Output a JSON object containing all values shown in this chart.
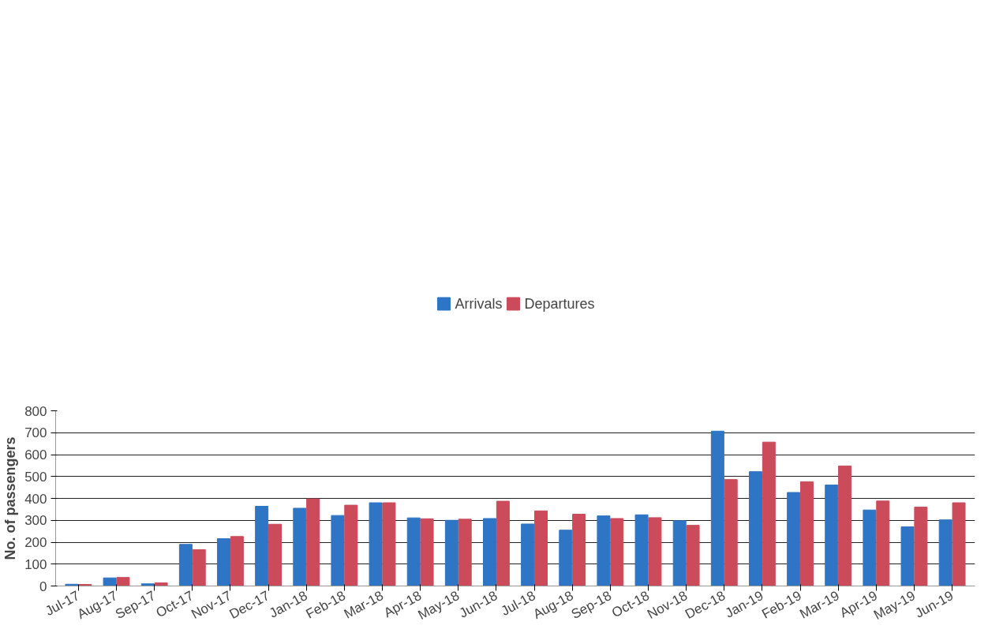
{
  "chart_data": {
    "type": "bar",
    "ylabel": "No. of passengers",
    "categories": [
      "Jul-17",
      "Aug-17",
      "Sep-17",
      "Oct-17",
      "Nov-17",
      "Dec-17",
      "Jan-18",
      "Feb-18",
      "Mar-18",
      "Apr-18",
      "May-18",
      "Jun-18",
      "Jul-18",
      "Aug-18",
      "Sep-18",
      "Oct-18",
      "Nov-18",
      "Dec-18",
      "Jan-19",
      "Feb-19",
      "Mar-19",
      "Apr-19",
      "May-19",
      "Jun-19"
    ],
    "series": [
      {
        "name": "Arrivals",
        "color": "#2e75c6",
        "values": [
          8,
          37,
          10,
          190,
          216,
          364,
          355,
          322,
          380,
          311,
          300,
          308,
          283,
          255,
          320,
          325,
          298,
          707,
          522,
          427,
          461,
          347,
          270,
          302
        ]
      },
      {
        "name": "Departures",
        "color": "#cc4b5a",
        "values": [
          7,
          39,
          14,
          166,
          226,
          282,
          398,
          369,
          380,
          307,
          305,
          387,
          343,
          328,
          308,
          312,
          277,
          486,
          657,
          476,
          548,
          388,
          360,
          380
        ]
      }
    ],
    "ylim": [
      0,
      800
    ],
    "yticks": [
      0,
      100,
      200,
      300,
      400,
      500,
      600,
      700,
      800
    ],
    "grid": "y",
    "legend": "top"
  }
}
